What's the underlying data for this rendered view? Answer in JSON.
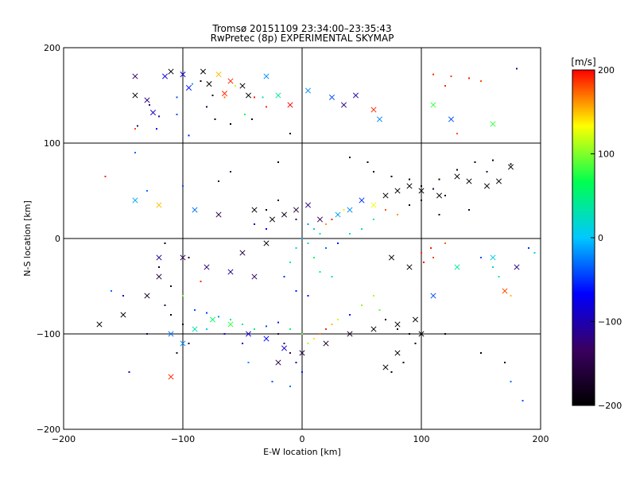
{
  "chart_data": {
    "type": "scatter",
    "title": "Tromsø 20151109 23:34:00–23:35:43",
    "subtitle": "RwPretec (8p) EXPERIMENTAL SKYMAP",
    "xlabel": "E-W location [km]",
    "ylabel": "N-S location [km]",
    "xlim": [
      -200,
      200
    ],
    "ylim": [
      -200,
      200
    ],
    "x_ticks": [
      "-200",
      "-100",
      "0",
      "100",
      "200"
    ],
    "y_ticks": [
      "-200",
      "-100",
      "0",
      "100",
      "200"
    ],
    "grid": true,
    "grid_lines_x": [
      -100,
      0,
      100
    ],
    "grid_lines_y": [
      -100,
      0,
      100
    ],
    "colorbar": {
      "label": "[m/s]",
      "range": [
        -200,
        200
      ],
      "ticks": [
        "200",
        "100",
        "0",
        "-100",
        "-200"
      ],
      "colormap": "rainbow: black → purple → blue → cyan → green → yellow → red",
      "stops": [
        "#000000",
        "#3a0060",
        "#0000ff",
        "#00c8ff",
        "#00ff50",
        "#ffff00",
        "#ff0000"
      ]
    },
    "marker_types": [
      "dot",
      "x"
    ],
    "series": [
      {
        "marker": "dot",
        "points": [
          [
            -122,
            115,
            -70
          ],
          [
            -105,
            130,
            -40
          ],
          [
            -75,
            150,
            -180
          ],
          [
            -40,
            148,
            195
          ],
          [
            -30,
            138,
            190
          ],
          [
            -65,
            148,
            170
          ],
          [
            -56,
            160,
            120
          ],
          [
            -42,
            125,
            -190
          ],
          [
            -60,
            120,
            -200
          ],
          [
            -85,
            165,
            -195
          ],
          [
            -95,
            108,
            -60
          ],
          [
            -120,
            128,
            -110
          ],
          [
            -128,
            140,
            -130
          ],
          [
            -138,
            118,
            -120
          ],
          [
            -80,
            138,
            -150
          ],
          [
            -73,
            125,
            -200
          ],
          [
            -33,
            148,
            30
          ],
          [
            -48,
            130,
            60
          ],
          [
            -105,
            148,
            -40
          ],
          [
            -92,
            162,
            -10
          ],
          [
            -140,
            90,
            -30
          ],
          [
            110,
            172,
            190
          ],
          [
            125,
            170,
            185
          ],
          [
            140,
            168,
            195
          ],
          [
            150,
            165,
            180
          ],
          [
            180,
            178,
            -120
          ],
          [
            130,
            110,
            180
          ],
          [
            120,
            160,
            190
          ],
          [
            -165,
            65,
            190
          ],
          [
            -140,
            115,
            180
          ],
          [
            -10,
            110,
            -200
          ],
          [
            -20,
            80,
            -200
          ],
          [
            40,
            85,
            -200
          ],
          [
            55,
            80,
            -200
          ],
          [
            60,
            70,
            -200
          ],
          [
            75,
            65,
            -200
          ],
          [
            90,
            62,
            -200
          ],
          [
            100,
            55,
            -190
          ],
          [
            115,
            62,
            -200
          ],
          [
            130,
            72,
            -200
          ],
          [
            145,
            80,
            -200
          ],
          [
            160,
            82,
            -200
          ],
          [
            175,
            78,
            -200
          ],
          [
            155,
            70,
            -150
          ],
          [
            120,
            45,
            -180
          ],
          [
            110,
            52,
            -160
          ],
          [
            100,
            40,
            -200
          ],
          [
            90,
            35,
            -200
          ],
          [
            115,
            25,
            -190
          ],
          [
            140,
            30,
            -170
          ],
          [
            -20,
            40,
            -160
          ],
          [
            -30,
            30,
            -200
          ],
          [
            -15,
            25,
            -170
          ],
          [
            -5,
            20,
            -130
          ],
          [
            5,
            15,
            -20
          ],
          [
            10,
            10,
            10
          ],
          [
            15,
            5,
            30
          ],
          [
            20,
            15,
            160
          ],
          [
            25,
            20,
            190
          ],
          [
            30,
            25,
            180
          ],
          [
            35,
            30,
            140
          ],
          [
            0,
            0,
            -10
          ],
          [
            5,
            -5,
            0
          ],
          [
            -5,
            -10,
            20
          ],
          [
            10,
            -20,
            60
          ],
          [
            20,
            -10,
            -30
          ],
          [
            30,
            -5,
            -60
          ],
          [
            40,
            5,
            20
          ],
          [
            50,
            10,
            30
          ],
          [
            60,
            20,
            40
          ],
          [
            70,
            30,
            180
          ],
          [
            80,
            25,
            160
          ],
          [
            -30,
            10,
            -70
          ],
          [
            -40,
            15,
            -100
          ],
          [
            -10,
            -25,
            40
          ],
          [
            15,
            -35,
            50
          ],
          [
            25,
            -40,
            20
          ],
          [
            -15,
            -40,
            -50
          ],
          [
            -5,
            -55,
            -60
          ],
          [
            5,
            -60,
            -70
          ],
          [
            100,
            -15,
            190
          ],
          [
            110,
            -20,
            185
          ],
          [
            108,
            -10,
            195
          ],
          [
            120,
            -5,
            175
          ],
          [
            102,
            -25,
            200
          ],
          [
            -120,
            -30,
            -190
          ],
          [
            -110,
            -50,
            -180
          ],
          [
            -115,
            -70,
            -150
          ],
          [
            -110,
            -80,
            -200
          ],
          [
            -100,
            -90,
            -190
          ],
          [
            -90,
            -75,
            -40
          ],
          [
            -80,
            -78,
            -50
          ],
          [
            -70,
            -82,
            -20
          ],
          [
            -60,
            -85,
            30
          ],
          [
            -50,
            -90,
            40
          ],
          [
            -40,
            -95,
            50
          ],
          [
            -30,
            -92,
            -40
          ],
          [
            -20,
            -88,
            -60
          ],
          [
            -10,
            -95,
            60
          ],
          [
            0,
            -100,
            90
          ],
          [
            5,
            -110,
            110
          ],
          [
            10,
            -105,
            140
          ],
          [
            15,
            -100,
            170
          ],
          [
            20,
            -95,
            190
          ],
          [
            25,
            -90,
            150
          ],
          [
            30,
            -85,
            120
          ],
          [
            40,
            -80,
            -60
          ],
          [
            50,
            -70,
            100
          ],
          [
            60,
            -60,
            110
          ],
          [
            65,
            -75,
            90
          ],
          [
            70,
            -85,
            -200
          ],
          [
            80,
            -95,
            -190
          ],
          [
            90,
            -100,
            -200
          ],
          [
            95,
            -110,
            -200
          ],
          [
            85,
            -130,
            -190
          ],
          [
            75,
            -140,
            -200
          ],
          [
            -20,
            -100,
            -150
          ],
          [
            -15,
            -110,
            -120
          ],
          [
            -10,
            -120,
            -140
          ],
          [
            -5,
            -130,
            -100
          ],
          [
            0,
            -140,
            -60
          ],
          [
            -25,
            -150,
            -40
          ],
          [
            -10,
            -155,
            -30
          ],
          [
            -45,
            -130,
            -20
          ],
          [
            -50,
            -110,
            -90
          ],
          [
            -65,
            -100,
            -80
          ],
          [
            -80,
            -95,
            0
          ],
          [
            -95,
            -110,
            -180
          ],
          [
            -105,
            -120,
            -170
          ],
          [
            -130,
            -100,
            -160
          ],
          [
            -145,
            -140,
            -100
          ],
          [
            -150,
            -60,
            -90
          ],
          [
            -160,
            -55,
            -30
          ],
          [
            120,
            -100,
            -200
          ],
          [
            150,
            -120,
            -200
          ],
          [
            170,
            -130,
            -190
          ],
          [
            175,
            -150,
            -30
          ],
          [
            185,
            -170,
            -40
          ],
          [
            -60,
            70,
            -150
          ],
          [
            -70,
            60,
            -160
          ],
          [
            -100,
            55,
            -40
          ],
          [
            -130,
            50,
            -30
          ],
          [
            -115,
            -5,
            -200
          ],
          [
            -95,
            -20,
            -180
          ],
          [
            -85,
            -45,
            190
          ],
          [
            -100,
            -60,
            100
          ],
          [
            150,
            -20,
            -40
          ],
          [
            160,
            -30,
            10
          ],
          [
            165,
            -40,
            40
          ],
          [
            175,
            -60,
            150
          ],
          [
            190,
            -10,
            -50
          ],
          [
            195,
            -15,
            10
          ]
        ]
      },
      {
        "marker": "x",
        "points": [
          [
            -140,
            170,
            -130
          ],
          [
            -140,
            150,
            -190
          ],
          [
            -130,
            145,
            -120
          ],
          [
            -125,
            132,
            -90
          ],
          [
            -110,
            175,
            -200
          ],
          [
            -115,
            170,
            -80
          ],
          [
            -100,
            172,
            -80
          ],
          [
            -95,
            158,
            -60
          ],
          [
            -83,
            175,
            -200
          ],
          [
            -78,
            162,
            -200
          ],
          [
            -70,
            172,
            150
          ],
          [
            -60,
            165,
            190
          ],
          [
            -65,
            152,
            190
          ],
          [
            -50,
            160,
            -200
          ],
          [
            -45,
            150,
            -200
          ],
          [
            -30,
            170,
            -20
          ],
          [
            -20,
            150,
            40
          ],
          [
            -10,
            140,
            200
          ],
          [
            5,
            155,
            -20
          ],
          [
            25,
            148,
            -40
          ],
          [
            35,
            140,
            -120
          ],
          [
            45,
            150,
            -100
          ],
          [
            60,
            135,
            190
          ],
          [
            65,
            125,
            -20
          ],
          [
            110,
            140,
            80
          ],
          [
            125,
            125,
            -40
          ],
          [
            160,
            120,
            80
          ],
          [
            -140,
            40,
            -10
          ],
          [
            -120,
            35,
            150
          ],
          [
            -90,
            30,
            -30
          ],
          [
            -70,
            25,
            -150
          ],
          [
            -40,
            30,
            -200
          ],
          [
            -25,
            20,
            -200
          ],
          [
            -15,
            25,
            -180
          ],
          [
            -5,
            30,
            -160
          ],
          [
            5,
            35,
            -120
          ],
          [
            15,
            20,
            -140
          ],
          [
            30,
            25,
            -10
          ],
          [
            40,
            30,
            -20
          ],
          [
            50,
            40,
            -50
          ],
          [
            60,
            35,
            130
          ],
          [
            70,
            45,
            -200
          ],
          [
            80,
            50,
            -200
          ],
          [
            90,
            55,
            -200
          ],
          [
            100,
            50,
            -200
          ],
          [
            115,
            45,
            -200
          ],
          [
            130,
            65,
            -200
          ],
          [
            140,
            60,
            -200
          ],
          [
            155,
            55,
            -200
          ],
          [
            165,
            60,
            -200
          ],
          [
            175,
            75,
            -200
          ],
          [
            -40,
            -40,
            -130
          ],
          [
            -60,
            -35,
            -110
          ],
          [
            -80,
            -30,
            -120
          ],
          [
            -100,
            -20,
            -140
          ],
          [
            -120,
            -40,
            -160
          ],
          [
            -130,
            -60,
            -180
          ],
          [
            -150,
            -80,
            -200
          ],
          [
            -170,
            -90,
            -190
          ],
          [
            -110,
            -100,
            -30
          ],
          [
            -100,
            -110,
            -20
          ],
          [
            -90,
            -95,
            30
          ],
          [
            -75,
            -85,
            60
          ],
          [
            -60,
            -90,
            80
          ],
          [
            -45,
            -100,
            -80
          ],
          [
            -30,
            -105,
            -70
          ],
          [
            -15,
            -115,
            -90
          ],
          [
            0,
            -120,
            -160
          ],
          [
            20,
            -110,
            -170
          ],
          [
            40,
            -100,
            -180
          ],
          [
            60,
            -95,
            -190
          ],
          [
            80,
            -90,
            -200
          ],
          [
            95,
            -85,
            -200
          ],
          [
            100,
            -100,
            -200
          ],
          [
            80,
            -120,
            -200
          ],
          [
            70,
            -135,
            -200
          ],
          [
            -110,
            -145,
            190
          ],
          [
            -20,
            -130,
            -150
          ],
          [
            130,
            -30,
            40
          ],
          [
            160,
            -20,
            10
          ],
          [
            170,
            -55,
            180
          ],
          [
            180,
            -30,
            -120
          ],
          [
            -50,
            -15,
            -160
          ],
          [
            -30,
            -5,
            -200
          ],
          [
            110,
            -60,
            -40
          ],
          [
            -120,
            -20,
            -110
          ],
          [
            90,
            -30,
            -190
          ],
          [
            75,
            -20,
            -200
          ]
        ]
      }
    ]
  }
}
